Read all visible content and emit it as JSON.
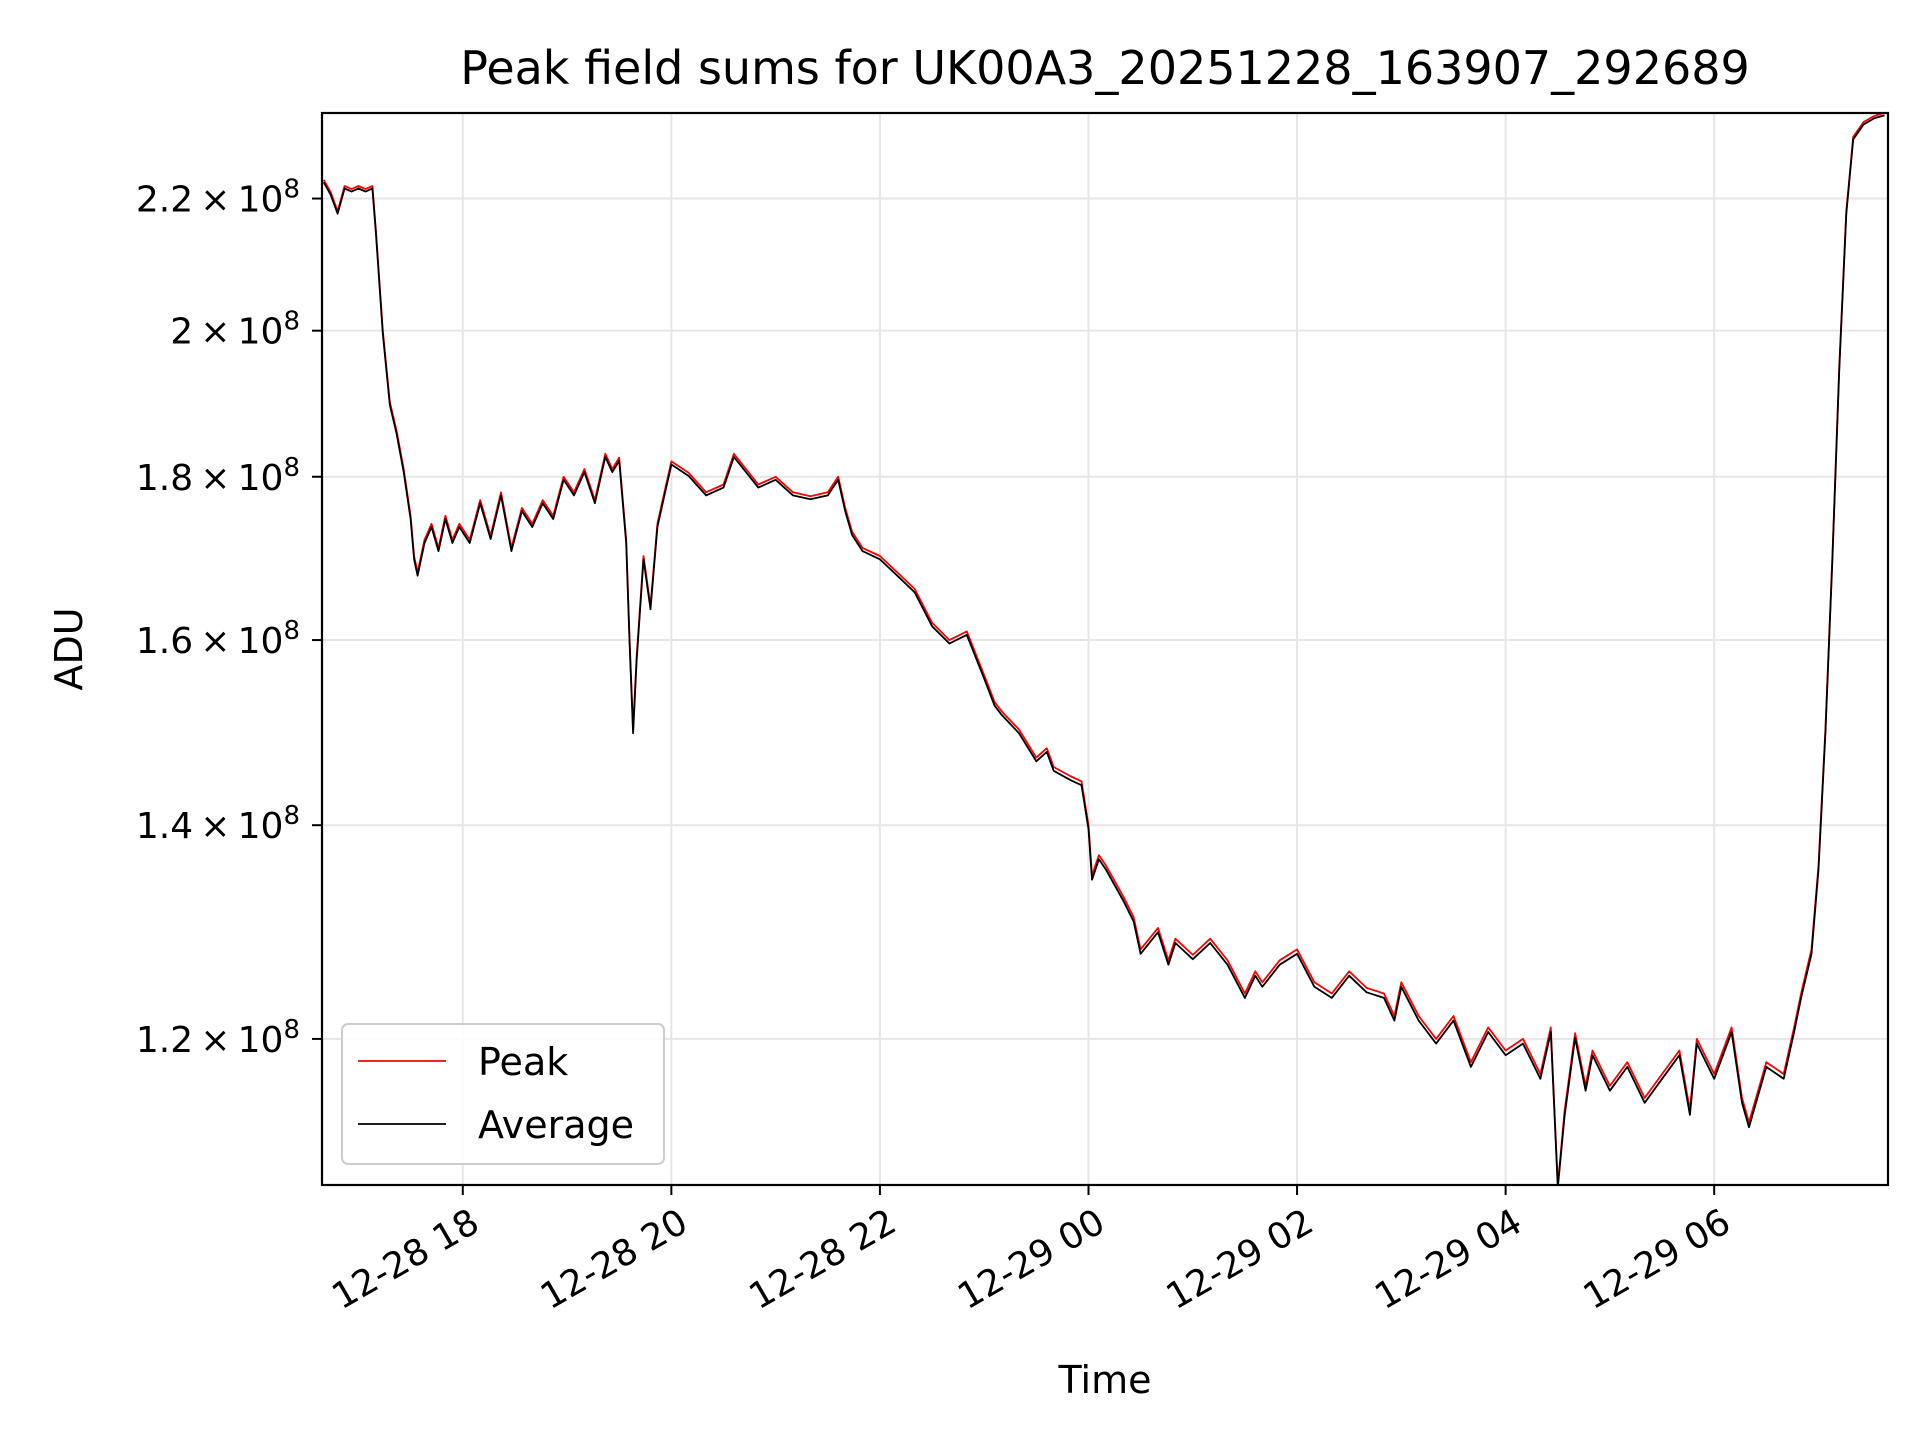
{
  "chart_data": {
    "type": "line",
    "title": "Peak field sums for UK00A3_20251228_163907_292689",
    "xlabel": "Time",
    "ylabel": "ADU",
    "y_scale": "log",
    "xlim": [
      "2025-12-28 16:39",
      "2025-12-29 07:40"
    ],
    "ylim": [
      108000000,
      234000000
    ],
    "grid": true,
    "legend_position": "lower-left",
    "x_ticks": [
      {
        "t": "2025-12-28 18:00",
        "label": "12-28 18"
      },
      {
        "t": "2025-12-28 20:00",
        "label": "12-28 20"
      },
      {
        "t": "2025-12-28 22:00",
        "label": "12-28 22"
      },
      {
        "t": "2025-12-29 00:00",
        "label": "12-29 00"
      },
      {
        "t": "2025-12-29 02:00",
        "label": "12-29 02"
      },
      {
        "t": "2025-12-29 04:00",
        "label": "12-29 04"
      },
      {
        "t": "2025-12-29 06:00",
        "label": "12-29 06"
      }
    ],
    "y_ticks": [
      {
        "value": 120000000,
        "mantissa": "1.2",
        "exponent": "8"
      },
      {
        "value": 140000000,
        "mantissa": "1.4",
        "exponent": "8"
      },
      {
        "value": 160000000,
        "mantissa": "1.6",
        "exponent": "8"
      },
      {
        "value": 180000000,
        "mantissa": "1.8",
        "exponent": "8"
      },
      {
        "value": 200000000,
        "mantissa": "2",
        "exponent": "8"
      },
      {
        "value": 220000000,
        "mantissa": "2.2",
        "exponent": "8"
      }
    ],
    "x": [
      "2025-12-28 16:40",
      "2025-12-28 16:44",
      "2025-12-28 16:48",
      "2025-12-28 16:52",
      "2025-12-28 16:56",
      "2025-12-28 17:00",
      "2025-12-28 17:04",
      "2025-12-28 17:08",
      "2025-12-28 17:10",
      "2025-12-28 17:14",
      "2025-12-28 17:18",
      "2025-12-28 17:22",
      "2025-12-28 17:26",
      "2025-12-28 17:30",
      "2025-12-28 17:32",
      "2025-12-28 17:34",
      "2025-12-28 17:38",
      "2025-12-28 17:42",
      "2025-12-28 17:46",
      "2025-12-28 17:50",
      "2025-12-28 17:54",
      "2025-12-28 17:58",
      "2025-12-28 18:04",
      "2025-12-28 18:10",
      "2025-12-28 18:16",
      "2025-12-28 18:22",
      "2025-12-28 18:28",
      "2025-12-28 18:34",
      "2025-12-28 18:40",
      "2025-12-28 18:46",
      "2025-12-28 18:52",
      "2025-12-28 18:58",
      "2025-12-28 19:04",
      "2025-12-28 19:10",
      "2025-12-28 19:16",
      "2025-12-28 19:22",
      "2025-12-28 19:26",
      "2025-12-28 19:30",
      "2025-12-28 19:34",
      "2025-12-28 19:36",
      "2025-12-28 19:38",
      "2025-12-28 19:40",
      "2025-12-28 19:44",
      "2025-12-28 19:48",
      "2025-12-28 19:52",
      "2025-12-28 19:56",
      "2025-12-28 20:00",
      "2025-12-28 20:10",
      "2025-12-28 20:20",
      "2025-12-28 20:30",
      "2025-12-28 20:36",
      "2025-12-28 20:50",
      "2025-12-28 21:00",
      "2025-12-28 21:10",
      "2025-12-28 21:20",
      "2025-12-28 21:30",
      "2025-12-28 21:36",
      "2025-12-28 21:40",
      "2025-12-28 21:44",
      "2025-12-28 21:50",
      "2025-12-28 22:00",
      "2025-12-28 22:10",
      "2025-12-28 22:20",
      "2025-12-28 22:30",
      "2025-12-28 22:40",
      "2025-12-28 22:50",
      "2025-12-28 23:00",
      "2025-12-28 23:06",
      "2025-12-28 23:10",
      "2025-12-28 23:20",
      "2025-12-28 23:30",
      "2025-12-28 23:36",
      "2025-12-28 23:40",
      "2025-12-28 23:50",
      "2025-12-28 23:56",
      "2025-12-29 00:00",
      "2025-12-29 00:02",
      "2025-12-29 00:06",
      "2025-12-29 00:10",
      "2025-12-29 00:20",
      "2025-12-29 00:26",
      "2025-12-29 00:30",
      "2025-12-29 00:40",
      "2025-12-29 00:46",
      "2025-12-29 00:50",
      "2025-12-29 01:00",
      "2025-12-29 01:10",
      "2025-12-29 01:20",
      "2025-12-29 01:30",
      "2025-12-29 01:36",
      "2025-12-29 01:40",
      "2025-12-29 01:50",
      "2025-12-29 02:00",
      "2025-12-29 02:10",
      "2025-12-29 02:20",
      "2025-12-29 02:30",
      "2025-12-29 02:40",
      "2025-12-29 02:50",
      "2025-12-29 02:56",
      "2025-12-29 03:00",
      "2025-12-29 03:10",
      "2025-12-29 03:20",
      "2025-12-29 03:30",
      "2025-12-29 03:40",
      "2025-12-29 03:50",
      "2025-12-29 04:00",
      "2025-12-29 04:10",
      "2025-12-29 04:20",
      "2025-12-29 04:26",
      "2025-12-29 04:30",
      "2025-12-29 04:34",
      "2025-12-29 04:40",
      "2025-12-29 04:46",
      "2025-12-29 04:50",
      "2025-12-29 05:00",
      "2025-12-29 05:10",
      "2025-12-29 05:20",
      "2025-12-29 05:30",
      "2025-12-29 05:40",
      "2025-12-29 05:46",
      "2025-12-29 05:50",
      "2025-12-29 06:00",
      "2025-12-29 06:10",
      "2025-12-29 06:16",
      "2025-12-29 06:20",
      "2025-12-29 06:30",
      "2025-12-29 06:40",
      "2025-12-29 06:46",
      "2025-12-29 06:50",
      "2025-12-29 06:56",
      "2025-12-29 07:00",
      "2025-12-29 07:04",
      "2025-12-29 07:08",
      "2025-12-29 07:12",
      "2025-12-29 07:16",
      "2025-12-29 07:20",
      "2025-12-29 07:26",
      "2025-12-29 07:32",
      "2025-12-29 07:38"
    ],
    "series": [
      {
        "name": "Peak",
        "color": "#ff0000",
        "values": [
          223.0,
          221.0,
          218.0,
          222.0,
          221.5,
          222.0,
          221.5,
          222.0,
          215.0,
          200.0,
          190.0,
          186.0,
          181.0,
          175.0,
          170.0,
          168.0,
          172.0,
          174.0,
          171.0,
          175.0,
          172.0,
          174.0,
          172.0,
          177.0,
          172.5,
          178.0,
          171.0,
          176.0,
          174.0,
          177.0,
          175.0,
          180.0,
          178.0,
          181.0,
          177.0,
          183.0,
          181.0,
          182.5,
          172.0,
          160.0,
          150.0,
          158.0,
          170.0,
          164.0,
          174.0,
          178.0,
          182.0,
          180.5,
          178.0,
          179.0,
          183.0,
          179.0,
          180.0,
          178.0,
          177.5,
          178.0,
          180.0,
          176.0,
          173.0,
          171.0,
          170.0,
          168.0,
          166.0,
          162.0,
          160.0,
          161.0,
          156.0,
          153.0,
          152.0,
          150.0,
          147.0,
          148.0,
          146.0,
          145.0,
          144.5,
          140.0,
          135.0,
          137.0,
          136.0,
          133.0,
          131.0,
          128.0,
          130.0,
          127.0,
          129.0,
          127.5,
          129.0,
          127.0,
          124.0,
          126.0,
          125.0,
          127.0,
          128.0,
          125.0,
          124.0,
          126.0,
          124.5,
          124.0,
          122.0,
          125.0,
          122.0,
          120.0,
          122.0,
          118.0,
          121.0,
          119.0,
          120.0,
          117.0,
          121.0,
          108.0,
          114.0,
          120.5,
          116.0,
          119.0,
          116.0,
          118.0,
          115.0,
          117.0,
          119.0,
          114.0,
          120.0,
          117.0,
          121.0,
          115.0,
          113.0,
          118.0,
          117.0,
          121.0,
          124.0,
          128.0,
          136.0,
          150.0,
          170.0,
          195.0,
          218.0,
          230.0,
          232.5,
          233.5,
          234.0
        ]
      },
      {
        "name": "Average",
        "color": "#000000",
        "values": [
          222.6,
          220.6,
          217.6,
          221.6,
          221.1,
          221.6,
          221.1,
          221.6,
          214.6,
          199.6,
          189.6,
          185.6,
          180.6,
          174.6,
          169.6,
          167.6,
          171.6,
          173.6,
          170.6,
          174.6,
          171.6,
          173.6,
          171.6,
          176.6,
          172.1,
          177.6,
          170.6,
          175.6,
          173.6,
          176.6,
          174.6,
          179.6,
          177.6,
          180.6,
          176.6,
          182.6,
          180.6,
          182.1,
          171.6,
          159.6,
          149.6,
          157.6,
          169.6,
          163.6,
          173.6,
          177.6,
          181.6,
          180.1,
          177.6,
          178.6,
          182.6,
          178.6,
          179.6,
          177.6,
          177.1,
          177.6,
          179.6,
          175.6,
          172.6,
          170.6,
          169.6,
          167.6,
          165.6,
          161.6,
          159.6,
          160.6,
          155.6,
          152.6,
          151.6,
          149.6,
          146.6,
          147.6,
          145.6,
          144.6,
          144.1,
          139.6,
          134.6,
          136.6,
          135.6,
          132.6,
          130.6,
          127.6,
          129.6,
          126.6,
          128.6,
          127.1,
          128.6,
          126.6,
          123.6,
          125.6,
          124.6,
          126.6,
          127.6,
          124.6,
          123.6,
          125.6,
          124.1,
          123.6,
          121.6,
          124.6,
          121.6,
          119.6,
          121.6,
          117.6,
          120.6,
          118.6,
          119.6,
          116.6,
          120.6,
          107.8,
          113.6,
          120.1,
          115.6,
          118.6,
          115.6,
          117.6,
          114.6,
          116.6,
          118.6,
          113.6,
          119.6,
          116.6,
          120.6,
          114.6,
          112.6,
          117.6,
          116.6,
          120.6,
          123.6,
          127.6,
          135.6,
          149.6,
          169.6,
          194.6,
          217.6,
          229.6,
          232.1,
          233.1,
          233.6
        ]
      }
    ],
    "values_unit": "millions of ADU (value x 1e6)"
  }
}
